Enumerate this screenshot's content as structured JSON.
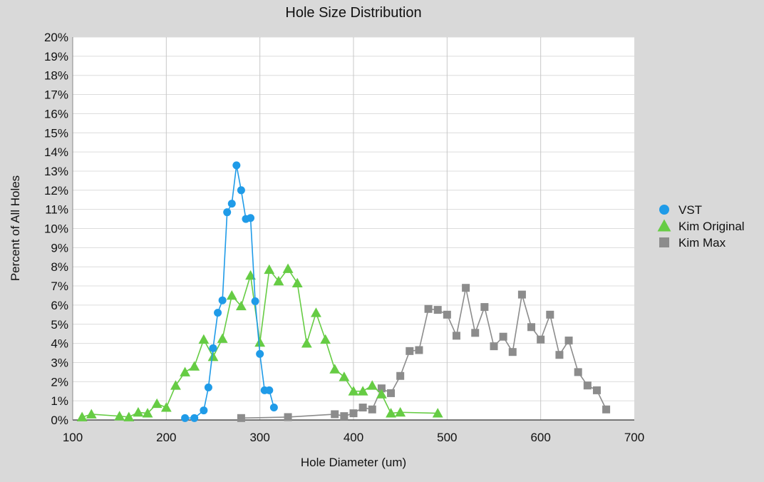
{
  "chart_data": {
    "type": "scatter",
    "title": "Hole Size Distribution",
    "xlabel": "Hole Diameter (um)",
    "ylabel": "Percent of All Holes",
    "xlim": [
      100,
      700
    ],
    "ylim": [
      0,
      20
    ],
    "x_ticks": [
      "100",
      "200",
      "300",
      "400",
      "500",
      "600",
      "700"
    ],
    "y_ticks": [
      "0%",
      "1%",
      "2%",
      "3%",
      "4%",
      "5%",
      "6%",
      "7%",
      "8%",
      "9%",
      "10%",
      "11%",
      "12%",
      "13%",
      "14%",
      "15%",
      "16%",
      "17%",
      "18%",
      "19%",
      "20%"
    ],
    "grid": true,
    "legend_position": "right",
    "series": [
      {
        "name": "VST",
        "color": "#1f9be8",
        "marker": "circle",
        "points": [
          [
            220,
            0.1
          ],
          [
            230,
            0.1
          ],
          [
            240,
            0.5
          ],
          [
            245,
            1.7
          ],
          [
            250,
            3.75
          ],
          [
            255,
            5.6
          ],
          [
            260,
            6.25
          ],
          [
            265,
            10.85
          ],
          [
            270,
            11.3
          ],
          [
            275,
            13.3
          ],
          [
            280,
            12.0
          ],
          [
            285,
            10.5
          ],
          [
            290,
            10.55
          ],
          [
            295,
            6.2
          ],
          [
            300,
            3.45
          ],
          [
            305,
            1.55
          ],
          [
            310,
            1.55
          ],
          [
            315,
            0.65
          ]
        ]
      },
      {
        "name": "Kim Original",
        "color": "#66cc44",
        "marker": "triangle",
        "points": [
          [
            110,
            0.15
          ],
          [
            120,
            0.3
          ],
          [
            150,
            0.2
          ],
          [
            160,
            0.15
          ],
          [
            170,
            0.4
          ],
          [
            180,
            0.35
          ],
          [
            190,
            0.85
          ],
          [
            200,
            0.65
          ],
          [
            210,
            1.8
          ],
          [
            220,
            2.5
          ],
          [
            230,
            2.8
          ],
          [
            240,
            4.2
          ],
          [
            250,
            3.3
          ],
          [
            260,
            4.25
          ],
          [
            270,
            6.5
          ],
          [
            280,
            5.95
          ],
          [
            290,
            7.55
          ],
          [
            300,
            4.05
          ],
          [
            310,
            7.85
          ],
          [
            320,
            7.25
          ],
          [
            330,
            7.9
          ],
          [
            340,
            7.15
          ],
          [
            350,
            4.0
          ],
          [
            360,
            5.6
          ],
          [
            370,
            4.2
          ],
          [
            380,
            2.65
          ],
          [
            390,
            2.25
          ],
          [
            400,
            1.5
          ],
          [
            410,
            1.5
          ],
          [
            420,
            1.8
          ],
          [
            430,
            1.35
          ],
          [
            440,
            0.35
          ],
          [
            450,
            0.4
          ],
          [
            490,
            0.35
          ]
        ]
      },
      {
        "name": "Kim Max",
        "color": "#8c8c8c",
        "marker": "square",
        "points": [
          [
            280,
            0.1
          ],
          [
            330,
            0.15
          ],
          [
            380,
            0.3
          ],
          [
            390,
            0.2
          ],
          [
            400,
            0.35
          ],
          [
            410,
            0.65
          ],
          [
            420,
            0.55
          ],
          [
            430,
            1.65
          ],
          [
            440,
            1.4
          ],
          [
            450,
            2.3
          ],
          [
            460,
            3.6
          ],
          [
            470,
            3.65
          ],
          [
            480,
            5.8
          ],
          [
            490,
            5.75
          ],
          [
            500,
            5.5
          ],
          [
            510,
            4.4
          ],
          [
            520,
            6.9
          ],
          [
            530,
            4.55
          ],
          [
            540,
            5.9
          ],
          [
            550,
            3.85
          ],
          [
            560,
            4.35
          ],
          [
            570,
            3.55
          ],
          [
            580,
            6.55
          ],
          [
            590,
            4.85
          ],
          [
            600,
            4.2
          ],
          [
            610,
            5.5
          ],
          [
            620,
            3.4
          ],
          [
            630,
            4.15
          ],
          [
            640,
            2.5
          ],
          [
            650,
            1.8
          ],
          [
            660,
            1.55
          ],
          [
            670,
            0.55
          ]
        ]
      }
    ]
  }
}
